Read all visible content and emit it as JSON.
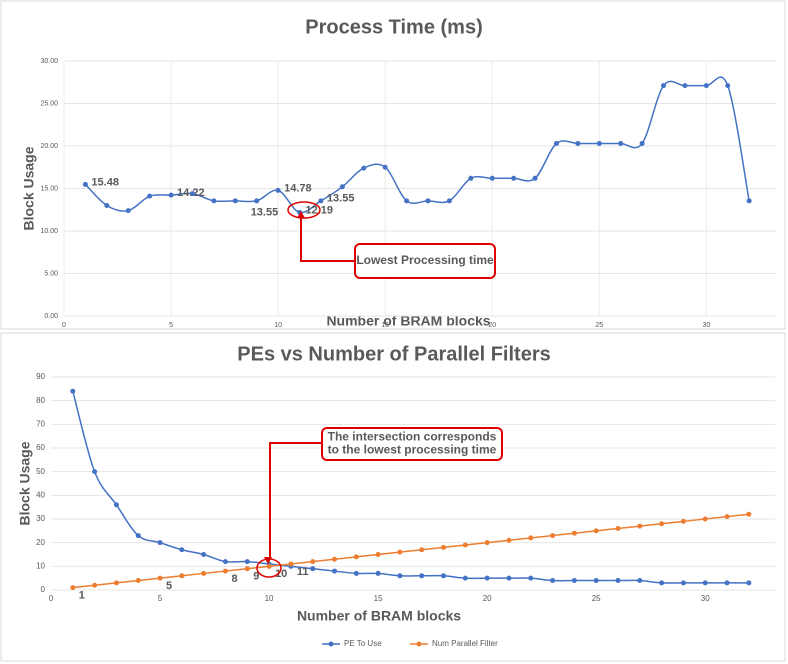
{
  "chart_data": [
    {
      "type": "line",
      "title": "Process Time (ms)",
      "y_label": "Block Usage",
      "x_label": "Number of BRAM blocks",
      "x": [
        1,
        2,
        3,
        4,
        5,
        6,
        7,
        8,
        9,
        10,
        11,
        12,
        13,
        14,
        15,
        16,
        17,
        18,
        19,
        20,
        21,
        22,
        23,
        24,
        25,
        26,
        27,
        28,
        29,
        30,
        31,
        32
      ],
      "values": [
        15.48,
        13.0,
        12.4,
        14.1,
        14.22,
        14.4,
        13.55,
        13.55,
        13.55,
        14.78,
        12.19,
        13.55,
        15.2,
        17.4,
        17.5,
        13.55,
        13.55,
        13.55,
        16.2,
        16.2,
        16.2,
        16.2,
        20.3,
        20.3,
        20.3,
        20.3,
        20.3,
        27.1,
        27.1,
        27.1,
        27.1,
        13.55
      ],
      "value_labels": [
        "15.48",
        null,
        null,
        null,
        "14.22",
        null,
        null,
        null,
        "13.55",
        "14.78",
        "12.19",
        "13.55",
        null,
        null,
        null,
        null,
        null,
        null,
        null,
        null,
        null,
        null,
        null,
        null,
        null,
        null,
        null,
        null,
        null,
        null,
        null,
        null
      ],
      "color": "#4472c4",
      "smooth": true,
      "grid": true,
      "xlim": [
        0,
        33.3
      ],
      "xticks": [
        0,
        5,
        10,
        15,
        20,
        25,
        30
      ],
      "ylim": [
        0,
        30
      ],
      "yticks": [
        {
          "value": 0,
          "label": "0.00"
        },
        {
          "value": 5,
          "label": "5.00"
        },
        {
          "value": 10,
          "label": "10.00"
        },
        {
          "value": 15,
          "label": "15.00"
        },
        {
          "value": 20,
          "label": "20.00"
        },
        {
          "value": 25,
          "label": "25.00"
        },
        {
          "value": 30,
          "label": "30.00"
        }
      ],
      "annotation": [
        "Lowest Processing time"
      ]
    },
    {
      "type": "line",
      "title": "PEs vs Number of Parallel Filters",
      "y_label": "Block Usage",
      "x_label": "Number of BRAM blocks",
      "x": [
        1,
        2,
        3,
        4,
        5,
        6,
        7,
        8,
        9,
        10,
        11,
        12,
        13,
        14,
        15,
        16,
        17,
        18,
        19,
        20,
        21,
        22,
        23,
        24,
        25,
        26,
        27,
        28,
        29,
        30,
        31,
        32
      ],
      "series": [
        {
          "name": "PE To Use",
          "color": "#4472c4",
          "values": [
            84,
            50,
            36,
            23,
            20,
            17,
            15,
            12,
            12,
            11,
            10,
            9,
            8,
            7,
            7,
            6,
            6,
            6,
            5,
            5,
            5,
            5,
            4,
            4,
            4,
            4,
            4,
            3,
            3,
            3,
            3,
            3
          ]
        },
        {
          "name": "Num Parallel Filter",
          "color": "#ed7d31",
          "values": [
            1,
            2,
            3,
            4,
            5,
            6,
            7,
            8,
            9,
            10,
            11,
            12,
            13,
            14,
            15,
            16,
            17,
            18,
            19,
            20,
            21,
            22,
            23,
            24,
            25,
            26,
            27,
            28,
            29,
            30,
            31,
            32
          ],
          "value_labels": [
            "1",
            null,
            null,
            null,
            "5",
            null,
            null,
            "8",
            "9",
            "10",
            "11",
            null,
            null,
            null,
            null,
            null,
            null,
            null,
            null,
            null,
            null,
            null,
            null,
            null,
            null,
            null,
            null,
            null,
            null,
            null,
            null,
            null
          ]
        }
      ],
      "smooth": true,
      "grid": true,
      "legend": "bottom",
      "xlim": [
        0,
        33.2
      ],
      "xticks": [
        0,
        5,
        10,
        15,
        20,
        25,
        30
      ],
      "ylim": [
        0,
        90
      ],
      "yticks": [
        0,
        10,
        20,
        30,
        40,
        50,
        60,
        70,
        80,
        90
      ],
      "annotation": [
        "The intersection corresponds",
        "to the lowest processing time"
      ]
    }
  ]
}
